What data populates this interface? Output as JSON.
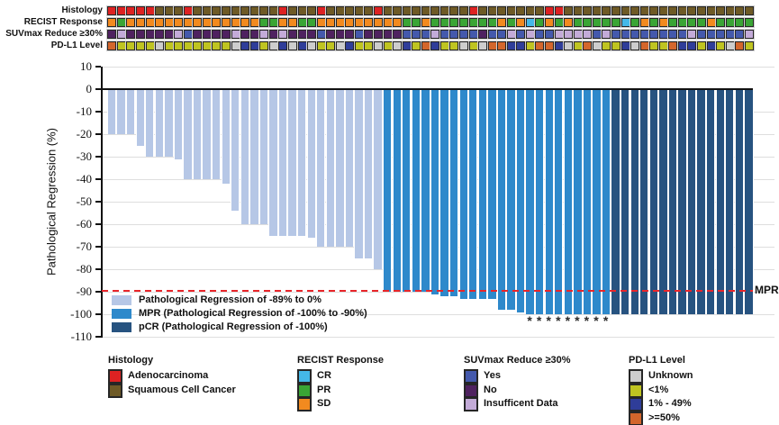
{
  "tracks": {
    "rows": [
      {
        "id": "histology",
        "label": "Histology",
        "codes": [
          "A",
          "A",
          "A",
          "A",
          "A",
          "S",
          "S",
          "S",
          "A",
          "S",
          "S",
          "S",
          "S",
          "S",
          "S",
          "S",
          "S",
          "S",
          "A",
          "S",
          "S",
          "S",
          "A",
          "S",
          "S",
          "S",
          "S",
          "S",
          "A",
          "S",
          "S",
          "S",
          "S",
          "S",
          "S",
          "S",
          "S",
          "S",
          "A",
          "S",
          "S",
          "S",
          "S",
          "S",
          "S",
          "S",
          "A",
          "A",
          "S",
          "S",
          "S",
          "S",
          "S",
          "S",
          "S",
          "S",
          "S",
          "S",
          "S",
          "S",
          "S",
          "S",
          "S",
          "S",
          "S",
          "S",
          "S",
          "S"
        ]
      },
      {
        "id": "recist",
        "label": "RECIST Response",
        "codes": [
          "SD",
          "PR",
          "SD",
          "SD",
          "SD",
          "SD",
          "SD",
          "SD",
          "SD",
          "SD",
          "SD",
          "SD",
          "SD",
          "SD",
          "SD",
          "SD",
          "PR",
          "PR",
          "SD",
          "SD",
          "PR",
          "PR",
          "SD",
          "SD",
          "SD",
          "SD",
          "SD",
          "SD",
          "SD",
          "SD",
          "SD",
          "PR",
          "PR",
          "SD",
          "PR",
          "PR",
          "PR",
          "PR",
          "PR",
          "PR",
          "PR",
          "SD",
          "PR",
          "SD",
          "CR",
          "PR",
          "SD",
          "PR",
          "SD",
          "PR",
          "PR",
          "PR",
          "PR",
          "PR",
          "CR",
          "PR",
          "SD",
          "PR",
          "SD",
          "PR",
          "PR",
          "PR",
          "PR",
          "SD",
          "PR",
          "PR",
          "PR",
          "PR"
        ]
      },
      {
        "id": "suvmax",
        "label": "SUVmax Reduce ≥30%",
        "codes": [
          "N",
          "I",
          "N",
          "N",
          "N",
          "N",
          "N",
          "I",
          "Y",
          "N",
          "N",
          "N",
          "N",
          "I",
          "N",
          "N",
          "I",
          "N",
          "I",
          "N",
          "N",
          "N",
          "Y",
          "N",
          "N",
          "N",
          "Y",
          "N",
          "N",
          "N",
          "N",
          "Y",
          "Y",
          "Y",
          "I",
          "Y",
          "Y",
          "Y",
          "Y",
          "N",
          "Y",
          "Y",
          "I",
          "Y",
          "I",
          "Y",
          "Y",
          "I",
          "I",
          "I",
          "I",
          "Y",
          "I",
          "Y",
          "Y",
          "Y",
          "Y",
          "Y",
          "Y",
          "Y",
          "Y",
          "I",
          "Y",
          "Y",
          "Y",
          "Y",
          "Y",
          "I"
        ]
      },
      {
        "id": "pdl1",
        "label": "PD-L1 Level",
        "codes": [
          "H",
          "L",
          "L",
          "L",
          "L",
          "U",
          "L",
          "L",
          "L",
          "L",
          "L",
          "L",
          "L",
          "U",
          "M",
          "M",
          "L",
          "U",
          "M",
          "U",
          "M",
          "U",
          "L",
          "L",
          "U",
          "M",
          "L",
          "L",
          "U",
          "L",
          "U",
          "M",
          "L",
          "H",
          "M",
          "L",
          "L",
          "U",
          "L",
          "U",
          "H",
          "H",
          "M",
          "M",
          "L",
          "H",
          "H",
          "M",
          "U",
          "L",
          "H",
          "U",
          "L",
          "L",
          "M",
          "U",
          "H",
          "L",
          "L",
          "H",
          "M",
          "M",
          "L",
          "M",
          "L",
          "U",
          "H",
          "L"
        ]
      }
    ],
    "palette": {
      "A": "#dd2222",
      "S": "#6e5a26",
      "SD": "#f28a1f",
      "PR": "#3aa535",
      "CR": "#44b8e8",
      "Y": "#4459ac",
      "N": "#4f2260",
      "I": "#c3abd8",
      "U": "#cdcdcd",
      "L": "#bfc421",
      "M": "#2f3d99",
      "H": "#d3662c"
    }
  },
  "chart_data": {
    "type": "bar",
    "title": "",
    "xlabel": "",
    "ylabel": "Pathological Regression (%)",
    "ylim": [
      -110,
      10
    ],
    "yticks": [
      10,
      0,
      -10,
      -20,
      -30,
      -40,
      -50,
      -60,
      -70,
      -80,
      -90,
      -100,
      -110
    ],
    "values": [
      -20,
      -20,
      -20,
      -25,
      -30,
      -30,
      -30,
      -31,
      -40,
      -40,
      -40,
      -40,
      -42,
      -54,
      -60,
      -60,
      -60,
      -65,
      -65,
      -65,
      -65,
      -66,
      -70,
      -70,
      -70,
      -70,
      -75,
      -75,
      -80,
      -90,
      -90,
      -90,
      -90,
      -90,
      -91,
      -92,
      -92,
      -93,
      -93,
      -93,
      -93,
      -98,
      -98,
      -99,
      -100,
      -100,
      -100,
      -100,
      -100,
      -100,
      -100,
      -100,
      -100,
      -100,
      -100,
      -100,
      -100,
      -100,
      -100,
      -100,
      -100,
      -100,
      -100,
      -100,
      -100,
      -100,
      -100,
      -100
    ],
    "groups": {
      "light_count": 29,
      "mid_count": 24,
      "dark_count": 15
    },
    "bar_colors": {
      "light": "#b6c7e6",
      "mid": "#2e89cb",
      "dark": "#275380"
    },
    "asterisk_indices": [
      44,
      45,
      46,
      47,
      48,
      49,
      50,
      51,
      52
    ],
    "asterisk_glyph": "*",
    "mpr_line": {
      "y": -90,
      "label": "MPR",
      "color": "#e8262a"
    },
    "legend": [
      {
        "label": "Pathological Regression of -89% to 0%",
        "color": "#b6c7e6"
      },
      {
        "label": "MPR (Pathological Regression of -100% to -90%)",
        "color": "#2e89cb"
      },
      {
        "label": "pCR (Pathological Regression of -100%)",
        "color": "#275380"
      }
    ]
  },
  "bottom_legend": [
    {
      "title": "Histology",
      "items": [
        {
          "label": "Adenocarcinoma",
          "color": "#dd2222"
        },
        {
          "label": "Squamous Cell Cancer",
          "color": "#6e5a26"
        }
      ]
    },
    {
      "title": "RECIST Response",
      "items": [
        {
          "label": "CR",
          "color": "#44b8e8"
        },
        {
          "label": "PR",
          "color": "#3aa535"
        },
        {
          "label": "SD",
          "color": "#f28a1f"
        }
      ]
    },
    {
      "title": "SUVmax Reduce ≥30%",
      "items": [
        {
          "label": "Yes",
          "color": "#4459ac"
        },
        {
          "label": "No",
          "color": "#4f2260"
        },
        {
          "label": "Insufficent Data",
          "color": "#c3abd8"
        }
      ]
    },
    {
      "title": "PD-L1 Level",
      "items": [
        {
          "label": "Unknown",
          "color": "#cdcdcd"
        },
        {
          "label": "<1%",
          "color": "#bfc421"
        },
        {
          "label": "1% - 49%",
          "color": "#2f3d99"
        },
        {
          "label": ">=50%",
          "color": "#d3662c"
        }
      ]
    }
  ]
}
